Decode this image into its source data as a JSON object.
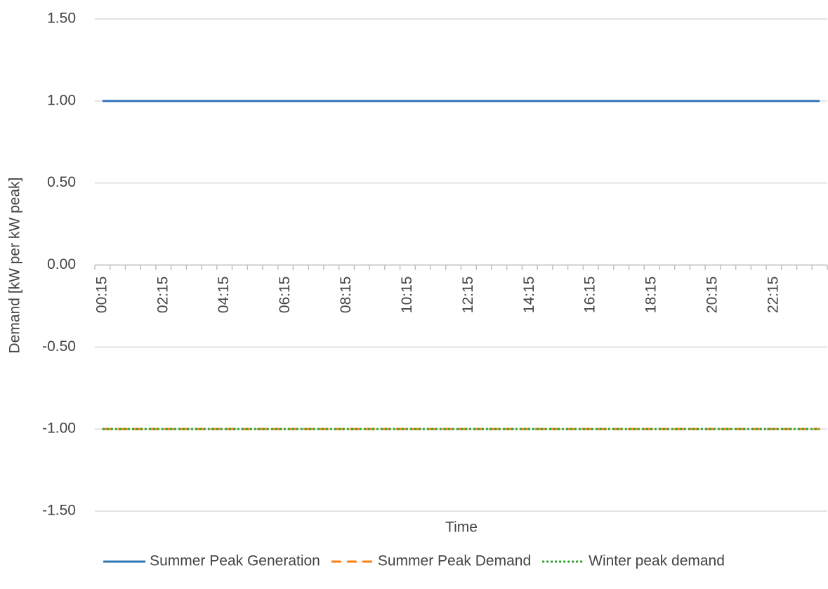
{
  "chart_data": {
    "type": "line",
    "y_label": "Demand [kW per kW peak]",
    "x_label": "Time",
    "categories": [
      "00:15",
      null,
      null,
      null,
      "02:15",
      null,
      null,
      null,
      "04:15",
      null,
      null,
      null,
      "06:15",
      null,
      null,
      null,
      "08:15",
      null,
      null,
      null,
      "10:15",
      null,
      null,
      null,
      "12:15",
      null,
      null,
      null,
      "14:15",
      null,
      null,
      null,
      "16:15",
      null,
      null,
      null,
      "18:15",
      null,
      null,
      null,
      "20:15",
      null,
      null,
      null,
      "22:15",
      null,
      null,
      null
    ],
    "series": [
      {
        "name": "Summer Peak Generation",
        "color": "#2e75b6",
        "dash": "solid",
        "values": [
          1,
          1,
          1,
          1,
          1,
          1,
          1,
          1,
          1,
          1,
          1,
          1,
          1,
          1,
          1,
          1,
          1,
          1,
          1,
          1,
          1,
          1,
          1,
          1,
          1,
          1,
          1,
          1,
          1,
          1,
          1,
          1,
          1,
          1,
          1,
          1,
          1,
          1,
          1,
          1,
          1,
          1,
          1,
          1,
          1,
          1,
          1,
          1
        ]
      },
      {
        "name": "Summer Peak Demand",
        "color": "#ff7f0e",
        "dash": "dashed",
        "values": [
          -1,
          -1,
          -1,
          -1,
          -1,
          -1,
          -1,
          -1,
          -1,
          -1,
          -1,
          -1,
          -1,
          -1,
          -1,
          -1,
          -1,
          -1,
          -1,
          -1,
          -1,
          -1,
          -1,
          -1,
          -1,
          -1,
          -1,
          -1,
          -1,
          -1,
          -1,
          -1,
          -1,
          -1,
          -1,
          -1,
          -1,
          -1,
          -1,
          -1,
          -1,
          -1,
          -1,
          -1,
          -1,
          -1,
          -1,
          -1
        ]
      },
      {
        "name": "Winter peak demand",
        "color": "#2ca02c",
        "dash": "dotted",
        "values": [
          -1,
          -1,
          -1,
          -1,
          -1,
          -1,
          -1,
          -1,
          -1,
          -1,
          -1,
          -1,
          -1,
          -1,
          -1,
          -1,
          -1,
          -1,
          -1,
          -1,
          -1,
          -1,
          -1,
          -1,
          -1,
          -1,
          -1,
          -1,
          -1,
          -1,
          -1,
          -1,
          -1,
          -1,
          -1,
          -1,
          -1,
          -1,
          -1,
          -1,
          -1,
          -1,
          -1,
          -1,
          -1,
          -1,
          -1,
          -1
        ]
      }
    ],
    "ylim": [
      -1.5,
      1.5
    ],
    "yticks": [
      {
        "value": -1.5,
        "label": "-1.50"
      },
      {
        "value": -1,
        "label": "-1.00"
      },
      {
        "value": -0.5,
        "label": "-0.50"
      },
      {
        "value": 0,
        "label": "0.00"
      },
      {
        "value": 0.5,
        "label": "0.50"
      },
      {
        "value": 1,
        "label": "1.00"
      },
      {
        "value": 1.5,
        "label": "1.50"
      }
    ],
    "grid": true,
    "legend": "bottom"
  }
}
